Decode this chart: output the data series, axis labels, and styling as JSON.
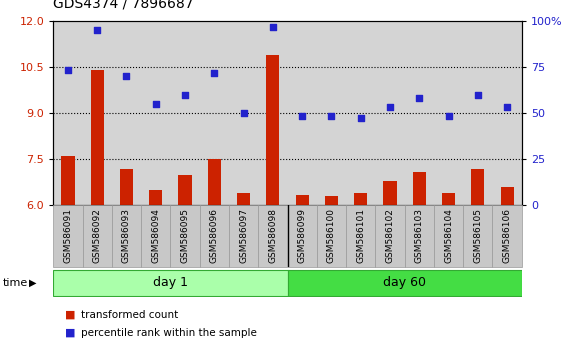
{
  "title": "GDS4374 / 7896687",
  "samples": [
    "GSM586091",
    "GSM586092",
    "GSM586093",
    "GSM586094",
    "GSM586095",
    "GSM586096",
    "GSM586097",
    "GSM586098",
    "GSM586099",
    "GSM586100",
    "GSM586101",
    "GSM586102",
    "GSM586103",
    "GSM586104",
    "GSM586105",
    "GSM586106"
  ],
  "bar_values": [
    7.6,
    10.4,
    7.2,
    6.5,
    7.0,
    7.5,
    6.4,
    10.9,
    6.35,
    6.3,
    6.4,
    6.8,
    7.1,
    6.4,
    7.2,
    6.6
  ],
  "scatter_values_left": [
    10.4,
    11.7,
    10.2,
    9.3,
    9.6,
    10.3,
    9.0,
    11.8,
    8.9,
    8.9,
    8.85,
    9.2,
    9.5,
    8.9,
    9.6,
    9.2
  ],
  "ylim_left": [
    6,
    12
  ],
  "ylim_right": [
    0,
    100
  ],
  "yticks_left": [
    6,
    7.5,
    9,
    10.5,
    12
  ],
  "yticks_right": [
    0,
    25,
    50,
    75,
    100
  ],
  "right_tick_labels": [
    "0",
    "25",
    "50",
    "75",
    "100%"
  ],
  "bar_color": "#cc2200",
  "scatter_color": "#2222cc",
  "plot_bg_color": "#d4d4d4",
  "sample_bg_color": "#c8c8c8",
  "day1_color": "#aaffaa",
  "day60_color": "#44dd44",
  "day1_label": "day 1",
  "day60_label": "day 60",
  "day1_count": 8,
  "day60_count": 8,
  "legend_bar_label": "transformed count",
  "legend_scatter_label": "percentile rank within the sample",
  "time_label": "time",
  "title_fontsize": 10,
  "tick_fontsize": 8,
  "sample_fontsize": 6.5,
  "bar_width": 0.45
}
